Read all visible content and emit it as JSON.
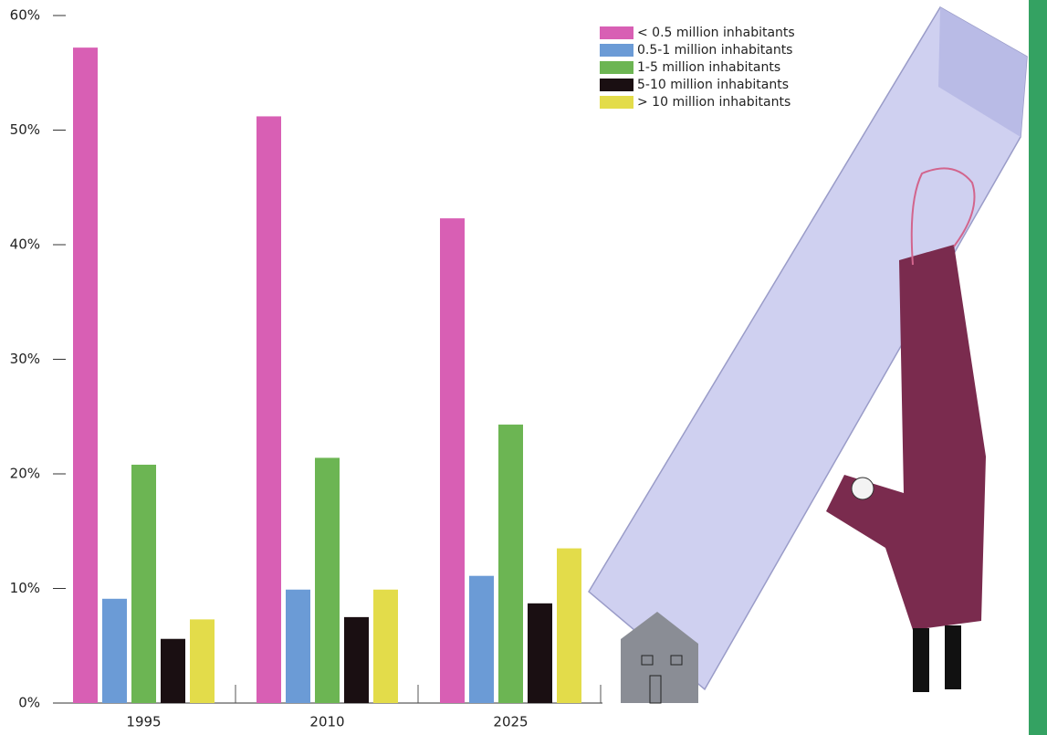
{
  "chart_data": {
    "type": "bar",
    "categories": [
      "1995",
      "2010",
      "2025"
    ],
    "series": [
      {
        "name": "< 0.5 million inhabitants",
        "color": "#d85fb4",
        "values": [
          57.2,
          51.2,
          42.3
        ]
      },
      {
        "name": "0.5-1 million inhabitants",
        "color": "#6b9bd6",
        "values": [
          9.1,
          9.9,
          11.1
        ]
      },
      {
        "name": "1-5 million inhabitants",
        "color": "#6cb553",
        "values": [
          20.8,
          21.4,
          24.3
        ]
      },
      {
        "name": "5-10 million inhabitants",
        "color": "#1a0f12",
        "values": [
          5.6,
          7.5,
          8.7
        ]
      },
      {
        "name": "> 10 million inhabitants",
        "color": "#e3dc4a",
        "values": [
          7.3,
          9.9,
          13.5
        ]
      }
    ],
    "ylim": [
      0,
      60
    ],
    "yticks": [
      {
        "value": 0,
        "label": "0%"
      },
      {
        "value": 10,
        "label": "10%"
      },
      {
        "value": 20,
        "label": "20%"
      },
      {
        "value": 30,
        "label": "30%"
      },
      {
        "value": 40,
        "label": "40%"
      },
      {
        "value": 50,
        "label": "50%"
      },
      {
        "value": 60,
        "label": "60%"
      }
    ]
  }
}
